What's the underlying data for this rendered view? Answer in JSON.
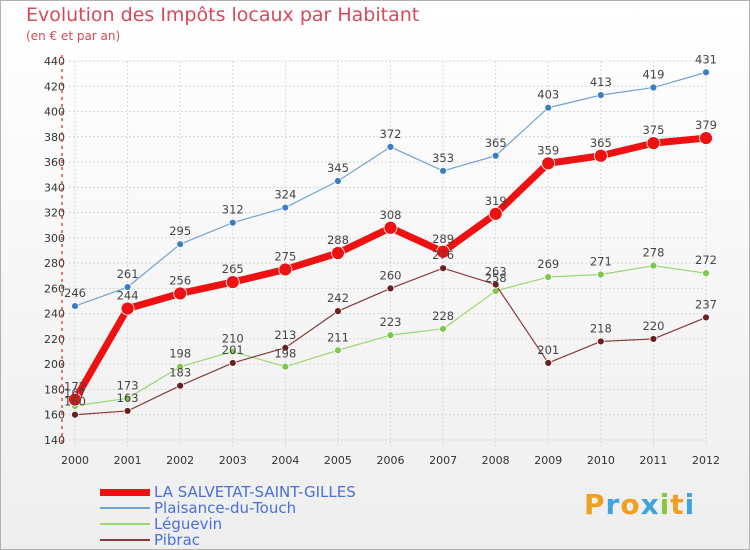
{
  "header": {
    "title": "Evolution des Impôts locaux par Habitant",
    "subtitle": "(en € et par an)"
  },
  "brand": {
    "letters": [
      "P",
      "r",
      "o",
      "x",
      "i",
      "t",
      "i"
    ],
    "colors": [
      "#f0a020",
      "#3fa3e0",
      "#f0a020",
      "#3fa3e0",
      "#8cc63f",
      "#f0a020",
      "#3fa3e0"
    ]
  },
  "chart_data": {
    "type": "line",
    "x": [
      "2000",
      "2001",
      "2002",
      "2003",
      "2004",
      "2005",
      "2006",
      "2007",
      "2008",
      "2009",
      "2010",
      "2011",
      "2012"
    ],
    "ylim": [
      140,
      440
    ],
    "yticks": [
      140,
      160,
      180,
      200,
      220,
      240,
      260,
      280,
      300,
      320,
      340,
      360,
      380,
      400,
      420,
      440
    ],
    "grid": true,
    "legend_position": "bottom-left",
    "series": [
      {
        "name": "Plaisance-du-Touch",
        "color": "#6fa4d4",
        "markerColor": "#3a7fc4",
        "width": 1.2,
        "marker": 3.5,
        "values": [
          246,
          261,
          295,
          312,
          324,
          345,
          372,
          353,
          365,
          403,
          413,
          419,
          431
        ]
      },
      {
        "name": "Léguevin",
        "color": "#99d870",
        "markerColor": "#7dc84a",
        "width": 1.2,
        "marker": 3.5,
        "values": [
          167,
          173,
          198,
          210,
          198,
          211,
          223,
          228,
          258,
          269,
          271,
          278,
          272
        ]
      },
      {
        "name": "Pibrac",
        "color": "#8a3a3a",
        "markerColor": "#6b1f1f",
        "width": 1.2,
        "marker": 3.5,
        "values": [
          160,
          163,
          183,
          201,
          213,
          242,
          260,
          276,
          263,
          201,
          218,
          220,
          237
        ]
      },
      {
        "name": "LA SALVETAT-SAINT-GILLES",
        "color": "#ee1111",
        "markerColor": "#ee1111",
        "width": 7,
        "marker": 6.5,
        "values": [
          172,
          244,
          256,
          265,
          275,
          288,
          308,
          289,
          319,
          359,
          365,
          375,
          379
        ]
      }
    ],
    "legend_order": [
      "LA SALVETAT-SAINT-GILLES",
      "Plaisance-du-Touch",
      "Léguevin",
      "Pibrac"
    ]
  }
}
